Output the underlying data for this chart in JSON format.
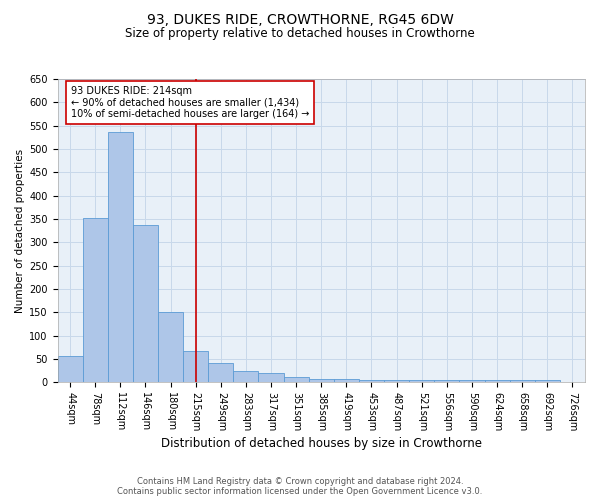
{
  "title1": "93, DUKES RIDE, CROWTHORNE, RG45 6DW",
  "title2": "Size of property relative to detached houses in Crowthorne",
  "xlabel": "Distribution of detached houses by size in Crowthorne",
  "ylabel": "Number of detached properties",
  "footer1": "Contains HM Land Registry data © Crown copyright and database right 2024.",
  "footer2": "Contains public sector information licensed under the Open Government Licence v3.0.",
  "annotation_line1": "93 DUKES RIDE: 214sqm",
  "annotation_line2": "← 90% of detached houses are smaller (1,434)",
  "annotation_line3": "10% of semi-detached houses are larger (164) →",
  "bins": [
    "44sqm",
    "78sqm",
    "112sqm",
    "146sqm",
    "180sqm",
    "215sqm",
    "249sqm",
    "283sqm",
    "317sqm",
    "351sqm",
    "385sqm",
    "419sqm",
    "453sqm",
    "487sqm",
    "521sqm",
    "556sqm",
    "590sqm",
    "624sqm",
    "658sqm",
    "692sqm",
    "726sqm"
  ],
  "values": [
    57,
    353,
    537,
    338,
    150,
    68,
    42,
    25,
    20,
    12,
    8,
    8,
    5,
    5,
    5,
    5,
    5,
    5,
    5,
    5,
    0
  ],
  "bar_color": "#aec6e8",
  "bar_edge_color": "#5b9bd5",
  "red_line_bin_index": 5,
  "red_line_color": "#cc0000",
  "annotation_box_color": "#ffffff",
  "annotation_box_edge_color": "#cc0000",
  "ylim": [
    0,
    650
  ],
  "yticks": [
    0,
    50,
    100,
    150,
    200,
    250,
    300,
    350,
    400,
    450,
    500,
    550,
    600,
    650
  ],
  "grid_color": "#c8d8ea",
  "background_color": "#e8f0f8",
  "title1_fontsize": 10,
  "title2_fontsize": 8.5,
  "xlabel_fontsize": 8.5,
  "ylabel_fontsize": 7.5,
  "tick_fontsize": 7,
  "annotation_fontsize": 7,
  "footer_fontsize": 6
}
